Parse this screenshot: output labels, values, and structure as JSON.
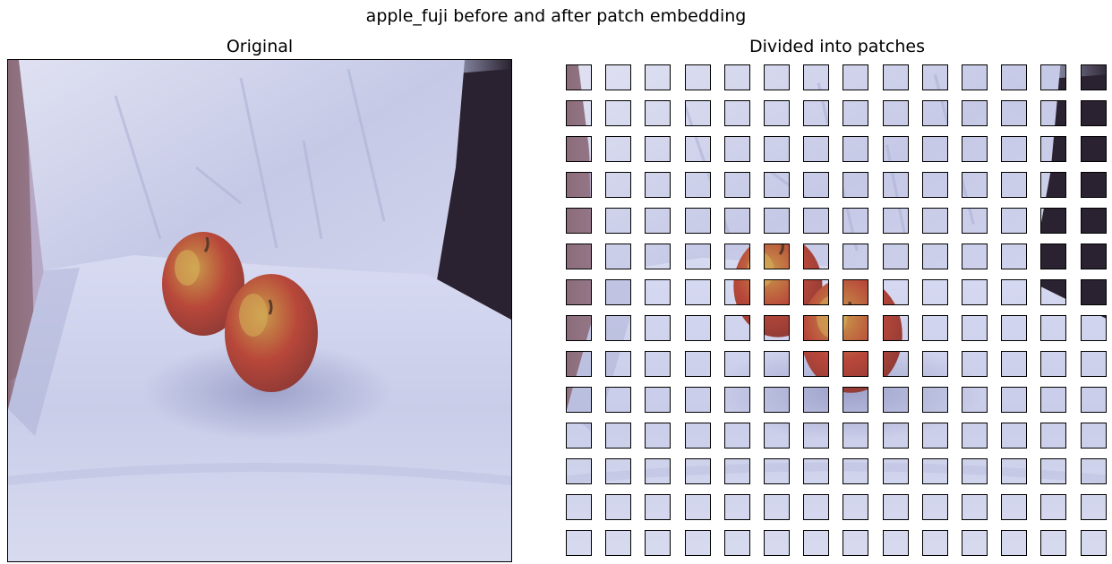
{
  "figure": {
    "title": "apple_fuji before and after patch embedding"
  },
  "panels": {
    "original_title": "Original",
    "patches_title": "Divided into patches"
  },
  "patch_grid": {
    "rows": 14,
    "cols": 14
  },
  "scene": {
    "subject": "two red-and-yellow fuji apples on a white cloth",
    "colors": {
      "cloth": "#c9cde9",
      "cloth_shadow": "#a9aed3",
      "background_dark": "#2a2230",
      "background_left": "#8c6c7a",
      "apple_red": "#b8473a",
      "apple_yellow": "#c99a4a"
    }
  }
}
